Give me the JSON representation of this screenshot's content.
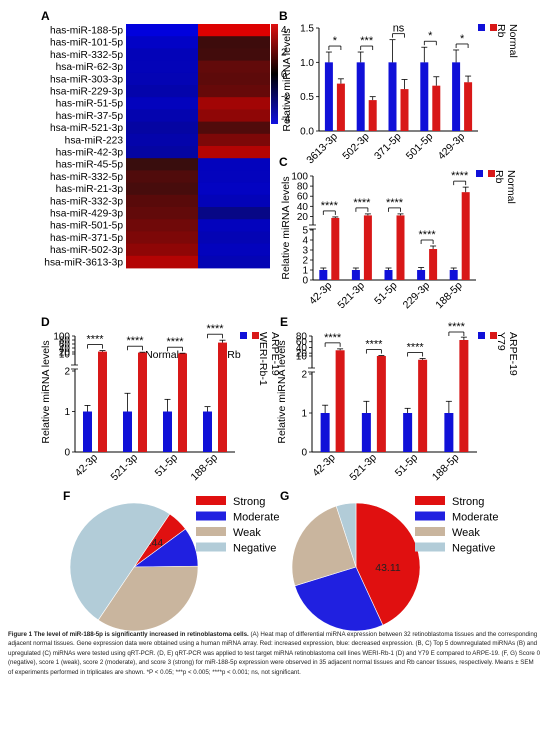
{
  "colors": {
    "normal_bar": "#1010d8",
    "cancer_bar": "#d81818",
    "strong": "#e01010",
    "moderate": "#2020e0",
    "weak": "#c9b59e",
    "negative": "#b2ccd8"
  },
  "chart_data": [
    {
      "panel": "A",
      "type": "heatmap",
      "rows": [
        "has-miR-188-5p",
        "has-miR-101-5p",
        "has-miR-332-5p",
        "hsa-miR-62-3p",
        "hsa-miR-303-3p",
        "hsa-miR-229-3p",
        "has-miR-51-5p",
        "has-miR-37-5p",
        "hsa-miR-521-3p",
        "hsa-miR-223",
        "has-miR-42-3p",
        "has-miR-45-5p",
        "has-miR-332-5p",
        "has-miR-21-3p",
        "has-miR-332-3p",
        "hsa-miR-429-3p",
        "has-miR-501-5p",
        "has-miR-371-5p",
        "has-miR-502-3p",
        "hsa-miR-3613-3p"
      ],
      "columns": [
        "Normal",
        "Rb"
      ],
      "values": [
        [
          -4.3,
          4.3
        ],
        [
          -3.8,
          0.8
        ],
        [
          -3.5,
          0.9
        ],
        [
          -3.5,
          1.6
        ],
        [
          -3.4,
          1.5
        ],
        [
          -3.2,
          1.7
        ],
        [
          -3.6,
          3.0
        ],
        [
          -3.3,
          2.6
        ],
        [
          -3.0,
          1.2
        ],
        [
          -3.2,
          2.2
        ],
        [
          -3.0,
          3.4
        ],
        [
          0.7,
          -3.6
        ],
        [
          1.2,
          -3.6
        ],
        [
          1.0,
          -3.7
        ],
        [
          1.4,
          -3.5
        ],
        [
          1.6,
          -2.4
        ],
        [
          1.9,
          -3.6
        ],
        [
          2.2,
          -3.4
        ],
        [
          2.6,
          -3.6
        ],
        [
          3.4,
          -3.4
        ]
      ],
      "colorbar_ticks": [
        4,
        2,
        0,
        -2,
        -4
      ],
      "range": [
        -4.5,
        4.5
      ]
    },
    {
      "panel": "B",
      "type": "bar",
      "ylabel": "Relative miRNA levels",
      "categories": [
        "3613-3p",
        "502-3p",
        "371-5p",
        "501-5p",
        "429-3p"
      ],
      "series": [
        {
          "name": "Normal",
          "values": [
            1.0,
            1.0,
            1.0,
            1.0,
            1.0
          ],
          "errors": [
            0.15,
            0.15,
            0.33,
            0.22,
            0.18
          ]
        },
        {
          "name": "Rb",
          "values": [
            0.69,
            0.45,
            0.61,
            0.66,
            0.71
          ],
          "errors": [
            0.07,
            0.05,
            0.14,
            0.13,
            0.09
          ]
        }
      ],
      "significance": [
        "*",
        "***",
        "ns",
        "*",
        "*"
      ],
      "ylim": [
        0,
        1.5
      ],
      "yticks": [
        "0.0",
        "0.5",
        "1.0",
        "1.5"
      ]
    },
    {
      "panel": "C",
      "type": "bar",
      "ylabel": "Relative miRNA levels",
      "categories": [
        "42-3p",
        "521-3p",
        "51-5p",
        "229-3p",
        "188-5p"
      ],
      "series": [
        {
          "name": "Normal",
          "values": [
            1,
            1,
            1,
            1,
            1
          ],
          "errors": [
            0.2,
            0.2,
            0.2,
            0.25,
            0.2
          ]
        },
        {
          "name": "Rb",
          "values": [
            17,
            22,
            22,
            3.1,
            68
          ],
          "errors": [
            2,
            3,
            3,
            0.3,
            10
          ]
        }
      ],
      "significance": [
        "****",
        "****",
        "****",
        "****",
        "****"
      ],
      "yticks": [
        "0",
        "1",
        "2",
        "3",
        "4",
        "5",
        "20",
        "40",
        "60",
        "80",
        "100"
      ]
    },
    {
      "panel": "D",
      "type": "bar",
      "ylabel": "Relative miRNA levels",
      "categories": [
        "42-3p",
        "521-3p",
        "51-5p",
        "188-5p"
      ],
      "series": [
        {
          "name": "ARPE-19",
          "values": [
            1,
            1,
            1,
            1
          ],
          "errors": [
            0.15,
            0.45,
            0.3,
            0.12
          ]
        },
        {
          "name": "WERI-Rb-1",
          "values": [
            22,
            17,
            13,
            67
          ],
          "errors": [
            5,
            2,
            1,
            12
          ]
        }
      ],
      "significance": [
        "****",
        "****",
        "****",
        "****"
      ],
      "yticks": [
        "0",
        "1",
        "2",
        "10",
        "20",
        "40",
        "60",
        "80",
        "100"
      ]
    },
    {
      "panel": "E",
      "type": "bar",
      "ylabel": "Relative miRNA levels",
      "categories": [
        "42-3p",
        "521-3p",
        "51-5p",
        "188-5p"
      ],
      "series": [
        {
          "name": "ARPE-19",
          "values": [
            1,
            1,
            1,
            1
          ],
          "errors": [
            0.2,
            0.3,
            0.12,
            0.3
          ]
        },
        {
          "name": "Y79",
          "values": [
            30,
            10,
            7,
            66
          ],
          "errors": [
            5,
            1.5,
            1,
            10
          ]
        }
      ],
      "significance": [
        "****",
        "****",
        "****",
        "****"
      ],
      "yticks": [
        "0",
        "1",
        "2",
        "10",
        "20",
        "40",
        "60",
        "80"
      ]
    },
    {
      "panel": "F",
      "type": "pie",
      "labels": [
        "Strong",
        "Moderate",
        "Weak",
        "Negative"
      ],
      "values": [
        5.44,
        9.9,
        34.66,
        50.0
      ],
      "data_labels": [
        "5.44",
        "9.90",
        "",
        ""
      ]
    },
    {
      "panel": "G",
      "type": "pie",
      "labels": [
        "Strong",
        "Moderate",
        "Weak",
        "Negative"
      ],
      "values": [
        43.11,
        27.14,
        24.75,
        5.0
      ],
      "data_labels": [
        "43.11",
        "27.14",
        "",
        ""
      ]
    }
  ],
  "caption": {
    "lead": "Figure 1",
    "title": "The level of miR-188-5p is significantly increased in retinoblastoma cells.",
    "lines": [
      "(A) Heat map of differential miRNA expression between 32 retinoblastoma tissues",
      "and the corresponding adjacent normal tissues. Gene expression data were obtained using a human miRNA array. Red: increased expression, blue: decreased expression.",
      "(B, C) Top 5 downregulated miRNAs (B) and upregulated (C) miRNAs were tested using qRT-PCR. (D, E) qRT-PCR was applied to test target miRNA retinoblastoma",
      "cell lines WERI-Rb-1 (D) and Y79 E compared to ARPE-19. (F, G) Score 0 (negative), score 1 (weak), score 2 (moderate), and score 3 (strong) for miR-188-5p",
      "expression were observed in 35 adjacent normal tissues and Rb cancer tissues, respectively. Means ± SEM of experiments performed in triplicates are shown. *P < 0.05;",
      "***p < 0.005; ****p < 0.001; ns, not significant."
    ]
  }
}
